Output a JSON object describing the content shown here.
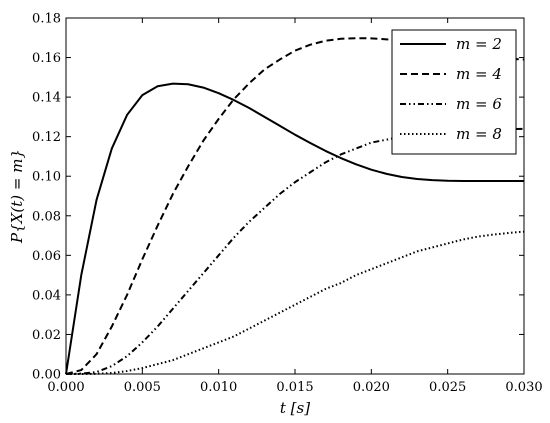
{
  "chart_data": {
    "type": "line",
    "title": "",
    "xlabel": "t [s]",
    "ylabel": "P{X(t) = m}",
    "xlim": [
      0,
      0.03
    ],
    "ylim": [
      0,
      0.18
    ],
    "xticks": [
      0,
      0.005,
      0.01,
      0.015,
      0.02,
      0.025,
      0.03
    ],
    "xtick_labels": [
      "0.000",
      "0.005",
      "0.010",
      "0.015",
      "0.020",
      "0.025",
      "0.030"
    ],
    "yticks": [
      0,
      0.02,
      0.04,
      0.06,
      0.08,
      0.1,
      0.12,
      0.14,
      0.16,
      0.18
    ],
    "ytick_labels": [
      "0.00",
      "0.02",
      "0.04",
      "0.06",
      "0.08",
      "0.10",
      "0.12",
      "0.14",
      "0.16",
      "0.18"
    ],
    "grid": false,
    "legend": "top-right",
    "x": [
      0,
      0.001,
      0.002,
      0.003,
      0.004,
      0.005,
      0.006,
      0.007,
      0.008,
      0.009,
      0.01,
      0.011,
      0.012,
      0.013,
      0.014,
      0.015,
      0.016,
      0.017,
      0.018,
      0.019,
      0.02,
      0.021,
      0.022,
      0.023,
      0.024,
      0.025,
      0.026,
      0.027,
      0.028,
      0.029,
      0.03
    ],
    "series": [
      {
        "name": "m = 2",
        "dash": "solid",
        "values": [
          0,
          0.05,
          0.088,
          0.114,
          0.131,
          0.141,
          0.1455,
          0.1468,
          0.1465,
          0.1448,
          0.142,
          0.1385,
          0.1345,
          0.13,
          0.1255,
          0.121,
          0.1168,
          0.1128,
          0.1092,
          0.106,
          0.1033,
          0.1012,
          0.0996,
          0.0986,
          0.098,
          0.0977,
          0.0976,
          0.0976,
          0.0976,
          0.0976,
          0.0976
        ]
      },
      {
        "name": "m = 4",
        "dash": "dashed",
        "values": [
          0,
          0.002,
          0.01,
          0.024,
          0.04,
          0.058,
          0.075,
          0.091,
          0.105,
          0.118,
          0.129,
          0.139,
          0.147,
          0.154,
          0.159,
          0.1635,
          0.1665,
          0.1685,
          0.1695,
          0.1698,
          0.1697,
          0.1692,
          0.1683,
          0.1672,
          0.1658,
          0.1643,
          0.1628,
          0.1614,
          0.1603,
          0.1594,
          0.159
        ]
      },
      {
        "name": "m = 6",
        "dash": "dashdotdot",
        "values": [
          0,
          0.0002,
          0.001,
          0.004,
          0.009,
          0.016,
          0.024,
          0.033,
          0.042,
          0.051,
          0.06,
          0.069,
          0.077,
          0.084,
          0.091,
          0.097,
          0.102,
          0.107,
          0.111,
          0.114,
          0.117,
          0.1185,
          0.12,
          0.121,
          0.122,
          0.1225,
          0.123,
          0.1233,
          0.1235,
          0.1237,
          0.124
        ]
      },
      {
        "name": "m = 8",
        "dash": "dotted",
        "values": [
          0,
          0,
          0.0001,
          0.0005,
          0.0015,
          0.003,
          0.005,
          0.007,
          0.01,
          0.013,
          0.016,
          0.019,
          0.023,
          0.027,
          0.031,
          0.035,
          0.039,
          0.043,
          0.046,
          0.05,
          0.053,
          0.056,
          0.059,
          0.062,
          0.064,
          0.066,
          0.068,
          0.0695,
          0.0705,
          0.0713,
          0.072
        ]
      }
    ]
  }
}
